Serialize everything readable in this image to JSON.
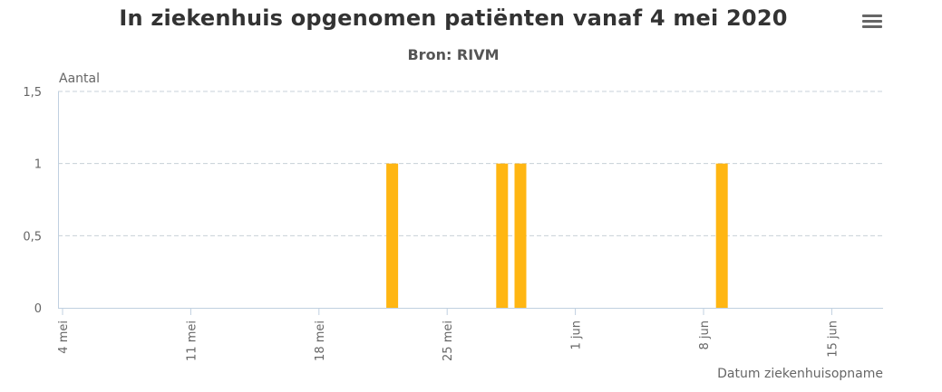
{
  "chart_data": {
    "type": "bar",
    "title": "In ziekenhuis opgenomen patiënten vanaf 4 mei 2020",
    "subtitle": "Bron: RIVM",
    "ylabel": "Aantal",
    "xlabel": "Datum ziekenhuisopname",
    "ylim": [
      0,
      1.5
    ],
    "yticks": [
      {
        "value": 0,
        "label": "0"
      },
      {
        "value": 0.5,
        "label": "0,5"
      },
      {
        "value": 1,
        "label": "1"
      },
      {
        "value": 1.5,
        "label": "1,5"
      }
    ],
    "x_start": "2020-05-04",
    "x_end": "2020-06-17",
    "xticks": [
      {
        "date": "2020-05-04",
        "label": "4 mei"
      },
      {
        "date": "2020-05-11",
        "label": "11 mei"
      },
      {
        "date": "2020-05-18",
        "label": "18 mei"
      },
      {
        "date": "2020-05-25",
        "label": "25 mei"
      },
      {
        "date": "2020-06-01",
        "label": "1 jun"
      },
      {
        "date": "2020-06-08",
        "label": "8 jun"
      },
      {
        "date": "2020-06-15",
        "label": "15 jun"
      }
    ],
    "series": [
      {
        "color": "#ffb612",
        "points": [
          {
            "date": "2020-05-22",
            "value": 1
          },
          {
            "date": "2020-05-28",
            "value": 1
          },
          {
            "date": "2020-05-29",
            "value": 1
          },
          {
            "date": "2020-06-09",
            "value": 1
          }
        ]
      }
    ],
    "grid": true,
    "grid_color": "#c8d0d8",
    "axis_color": "#c0d0e0",
    "text_color": "#666666"
  },
  "menu": {
    "icon": "hamburger-menu-icon"
  }
}
